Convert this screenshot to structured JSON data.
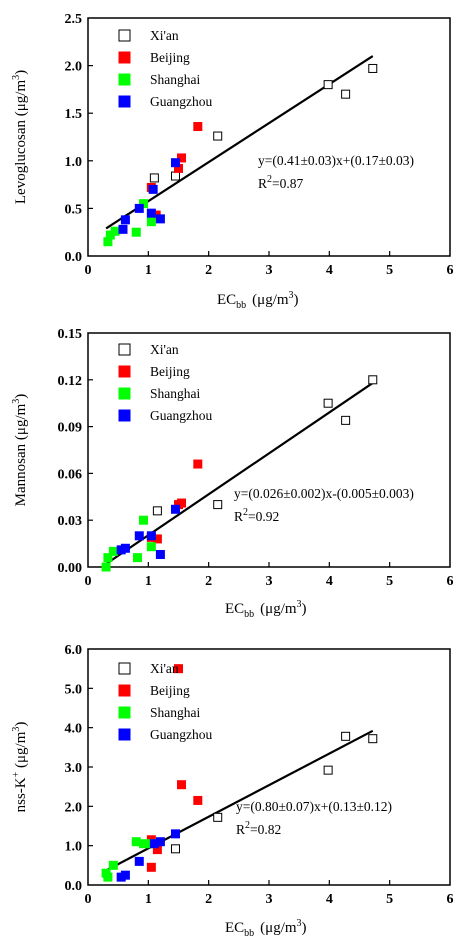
{
  "chart_data": [
    {
      "type": "scatter",
      "xlabel": "EC",
      "xlabel_sub": "bb",
      "xlabel_unit": "(μg/m",
      "xlabel_unit_sup": "3",
      "xlabel_unit_end": ")",
      "ylabel": "Levoglucosan (μg/m",
      "ylabel_sup": "3",
      "ylabel_end": ")",
      "xlim": [
        0,
        6
      ],
      "ylim": [
        0,
        2.5
      ],
      "xticks": [
        "0",
        "1",
        "2",
        "3",
        "4",
        "5",
        "6"
      ],
      "yticks": [
        "0.0",
        "0.5",
        "1.0",
        "1.5",
        "2.0",
        "2.5"
      ],
      "fit": {
        "x": [
          0.3,
          4.72
        ],
        "y": [
          0.29,
          2.1
        ]
      },
      "equation": "y=(0.41±0.03)x+(0.17±0.03)",
      "r2_label": "R",
      "r2_sup": "2",
      "r2_value": "=0.87",
      "series": [
        {
          "name": "Xi'an",
          "color": "#ffffff",
          "stroke": "#000000",
          "x": [
            1.1,
            1.45,
            2.15,
            3.98,
            4.27,
            4.72
          ],
          "y": [
            0.82,
            0.84,
            1.26,
            1.8,
            1.7,
            1.97
          ]
        },
        {
          "name": "Beijing",
          "color": "#ff0000",
          "stroke": "#ff0000",
          "x": [
            1.05,
            1.13,
            1.5,
            1.55,
            1.82
          ],
          "y": [
            0.72,
            0.43,
            0.92,
            1.03,
            1.36
          ]
        },
        {
          "name": "Shanghai",
          "color": "#00ff00",
          "stroke": "#00ff00",
          "x": [
            0.33,
            0.37,
            0.45,
            0.8,
            0.92,
            1.05
          ],
          "y": [
            0.15,
            0.22,
            0.26,
            0.25,
            0.55,
            0.36
          ]
        },
        {
          "name": "Guangzhou",
          "color": "#0000ff",
          "stroke": "#0000ff",
          "x": [
            0.58,
            0.62,
            0.85,
            1.05,
            1.08,
            1.2,
            1.45
          ],
          "y": [
            0.28,
            0.38,
            0.5,
            0.45,
            0.7,
            0.39,
            0.98
          ]
        }
      ]
    },
    {
      "type": "scatter",
      "xlabel": "EC",
      "xlabel_sub": "bb",
      "xlabel_unit": "(μg/m",
      "xlabel_unit_sup": "3",
      "xlabel_unit_end": ")",
      "ylabel": "Mannosan (μg/m",
      "ylabel_sup": "3",
      "ylabel_end": ")",
      "xlim": [
        0,
        6
      ],
      "ylim": [
        0,
        0.15
      ],
      "xticks": [
        "0",
        "1",
        "2",
        "3",
        "4",
        "5",
        "6"
      ],
      "yticks": [
        "0.00",
        "0.03",
        "0.06",
        "0.09",
        "0.12",
        "0.15"
      ],
      "fit": {
        "x": [
          0.3,
          4.72
        ],
        "y": [
          0.002,
          0.118
        ]
      },
      "equation": "y=(0.026±0.002)x-(0.005±0.003)",
      "r2_label": "R",
      "r2_sup": "2",
      "r2_value": "=0.92",
      "series": [
        {
          "name": "Xi'an",
          "color": "#ffffff",
          "stroke": "#000000",
          "x": [
            1.15,
            2.15,
            3.98,
            4.27,
            4.72
          ],
          "y": [
            0.036,
            0.04,
            0.105,
            0.094,
            0.12
          ]
        },
        {
          "name": "Beijing",
          "color": "#ff0000",
          "stroke": "#ff0000",
          "x": [
            1.05,
            1.15,
            1.5,
            1.55,
            1.82
          ],
          "y": [
            0.019,
            0.018,
            0.04,
            0.041,
            0.066
          ]
        },
        {
          "name": "Shanghai",
          "color": "#00ff00",
          "stroke": "#00ff00",
          "x": [
            0.3,
            0.33,
            0.42,
            0.82,
            0.92,
            1.05
          ],
          "y": [
            0.0,
            0.006,
            0.01,
            0.006,
            0.03,
            0.013
          ]
        },
        {
          "name": "Guangzhou",
          "color": "#0000ff",
          "stroke": "#0000ff",
          "x": [
            0.55,
            0.62,
            0.85,
            1.05,
            1.2,
            1.45
          ],
          "y": [
            0.011,
            0.012,
            0.02,
            0.02,
            0.008,
            0.037
          ]
        }
      ]
    },
    {
      "type": "scatter",
      "xlabel": "EC",
      "xlabel_sub": "bb",
      "xlabel_unit": "(μg/m",
      "xlabel_unit_sup": "3",
      "xlabel_unit_end": ")",
      "ylabel": "nss-K",
      "ylabel_sup": "+",
      "ylabel_mid": " (μg/m",
      "ylabel_sup2": "3",
      "ylabel_end": ")",
      "xlim": [
        0,
        6
      ],
      "ylim": [
        0,
        6
      ],
      "xticks": [
        "0",
        "1",
        "2",
        "3",
        "4",
        "5",
        "6"
      ],
      "yticks": [
        "0.0",
        "1.0",
        "2.0",
        "3.0",
        "4.0",
        "5.0",
        "6.0"
      ],
      "fit": {
        "x": [
          0.3,
          4.72
        ],
        "y": [
          0.37,
          3.92
        ]
      },
      "equation": "y=(0.80±0.07)x+(0.13±0.12)",
      "r2_label": "R",
      "r2_sup": "2",
      "r2_value": "=0.82",
      "series": [
        {
          "name": "Xi'an",
          "color": "#ffffff",
          "stroke": "#000000",
          "x": [
            1.45,
            2.15,
            3.98,
            4.27,
            4.72
          ],
          "y": [
            0.92,
            1.72,
            2.92,
            3.78,
            3.72
          ]
        },
        {
          "name": "Beijing",
          "color": "#ff0000",
          "stroke": "#ff0000",
          "x": [
            1.05,
            1.05,
            1.15,
            1.5,
            1.55,
            1.82
          ],
          "y": [
            1.15,
            0.45,
            0.9,
            5.5,
            2.55,
            2.15
          ]
        },
        {
          "name": "Shanghai",
          "color": "#00ff00",
          "stroke": "#00ff00",
          "x": [
            0.3,
            0.33,
            0.42,
            0.8,
            0.92,
            1.05
          ],
          "y": [
            0.3,
            0.2,
            0.5,
            1.1,
            1.05,
            1.05
          ]
        },
        {
          "name": "Guangzhou",
          "color": "#0000ff",
          "stroke": "#0000ff",
          "x": [
            0.55,
            0.62,
            0.85,
            1.1,
            1.2,
            1.45
          ],
          "y": [
            0.2,
            0.25,
            0.6,
            1.05,
            1.1,
            1.3
          ]
        }
      ]
    }
  ]
}
